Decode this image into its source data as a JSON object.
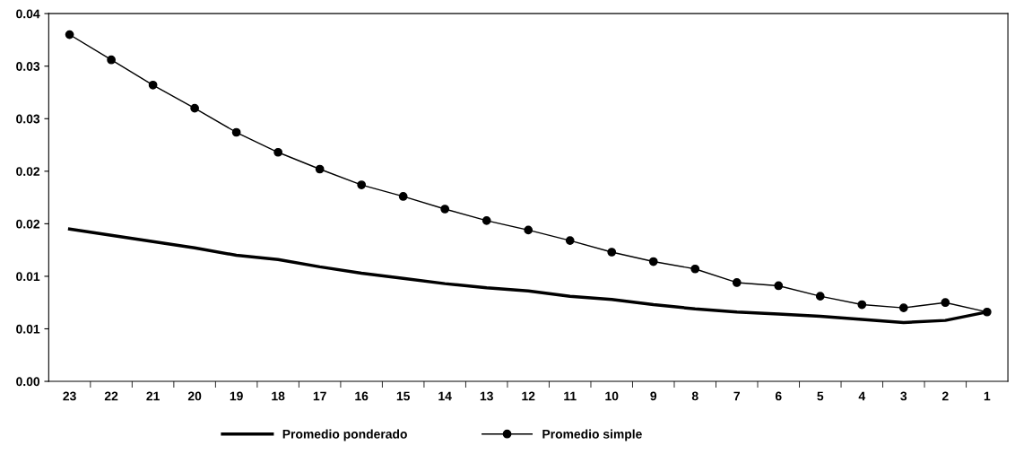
{
  "chart_data": {
    "type": "line",
    "categories": [
      "23",
      "22",
      "21",
      "20",
      "19",
      "18",
      "17",
      "16",
      "15",
      "14",
      "13",
      "12",
      "11",
      "10",
      "9",
      "8",
      "7",
      "6",
      "5",
      "4",
      "3",
      "2",
      "1"
    ],
    "series": [
      {
        "name": "Promedio ponderado",
        "color": "#000000",
        "marker": "none",
        "values": [
          0.0145,
          0.0139,
          0.0133,
          0.0127,
          0.012,
          0.0116,
          0.0109,
          0.0103,
          0.0098,
          0.0093,
          0.0089,
          0.0086,
          0.0081,
          0.0078,
          0.0073,
          0.0069,
          0.0066,
          0.0064,
          0.0062,
          0.0059,
          0.0056,
          0.0058,
          0.0066
        ]
      },
      {
        "name": "Promedio simple",
        "color": "#000000",
        "marker": "circle",
        "values": [
          0.033,
          0.0306,
          0.0282,
          0.026,
          0.0237,
          0.0218,
          0.0202,
          0.0187,
          0.0176,
          0.0164,
          0.0153,
          0.0144,
          0.0134,
          0.0123,
          0.0114,
          0.0107,
          0.0094,
          0.0091,
          0.0081,
          0.0073,
          0.007,
          0.0075,
          0.0066
        ]
      }
    ],
    "ylim": [
      0,
      0.035
    ],
    "yticks": [
      {
        "value": 0,
        "label": "0.00"
      },
      {
        "value": 0.005,
        "label": "0.01"
      },
      {
        "value": 0.01,
        "label": "0.01"
      },
      {
        "value": 0.015,
        "label": "0.02"
      },
      {
        "value": 0.02,
        "label": "0.02"
      },
      {
        "value": 0.025,
        "label": "0.03"
      },
      {
        "value": 0.03,
        "label": "0.03"
      },
      {
        "value": 0.035,
        "label": "0.04"
      }
    ],
    "grid": false,
    "legend": "bottom"
  }
}
